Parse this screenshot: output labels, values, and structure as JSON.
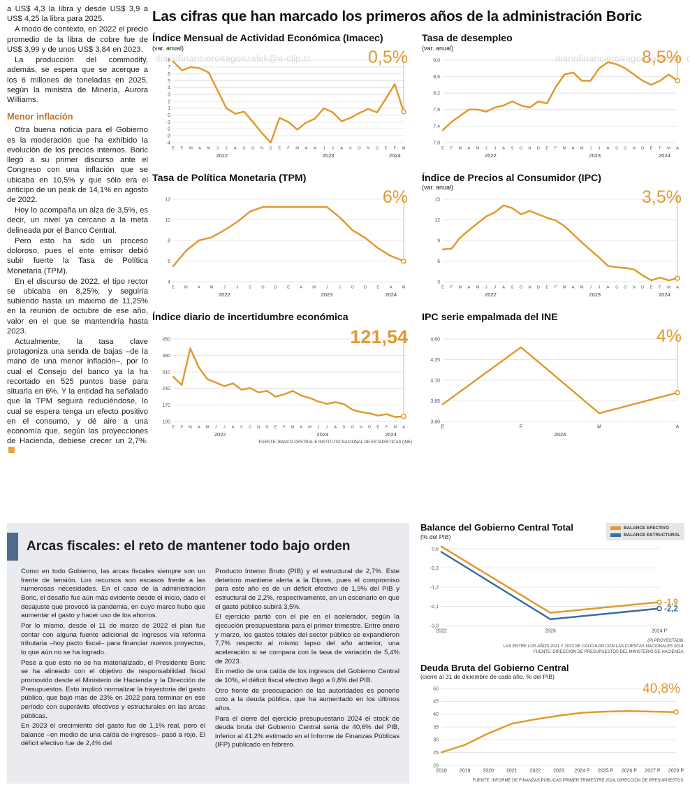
{
  "watermark": "diariofinanciero#agonzalek@e-clip.cl",
  "colors": {
    "accent_orange": "#E2992F",
    "accent_blue": "#3A6D9E"
  },
  "main_title": "Las cifras que han marcado los primeros años de la administración Boric",
  "left_column": {
    "paragraphs": [
      "a US$ 4,3 la libra y desde US$ 3,9 a US$ 4,25 la libra para 2025.",
      "A modo de contexto, en 2022 el precio promedio de la libra de cobre fue de US$ 3,99 y de unos US$ 3,84 en 2023.",
      "La producción del commodity, además, se espera que se acerque a los 6 millones de toneladas en 2025, según la ministra de Minería, Aurora Williams."
    ],
    "heading": "Menor inflación",
    "paragraphs2": [
      "Otra buena noticia para el Gobierno es la moderación que ha exhibido la evolución de los precios internos. Boric llegó a su primer discurso ante el Congreso con una inflación que se ubicaba en 10,5% y que sólo era el anticipo de un peak de 14,1% en agosto de 2022.",
      "Hoy lo acompaña un alza de 3,5%, es decir, un nivel ya cercano a la meta delineada por el Banco Central.",
      "Pero esto ha sido un proceso doloroso, pues el ente emisor debió subir fuerte la Tasa de Política Monetaria (TPM).",
      "En el discurso de 2022, el tipo rector se ubicaba en 8,25%, y seguiría subiendo hasta un máximo de 11,25% en la reunión de octubre de ese año, valor en el que se mantendría hasta 2023.",
      "Actualmente, la tasa clave protagoniza una senda de bajas –de la mano de una menor inflación–, por lo cual el Consejo del banco ya la ha recortado en 525 puntos base para situarla en 6%. Y la entidad ha señalado que la TPM seguirá reduciéndose, lo cual se espera tenga un efecto positivo en el consumo, y dé aire a una economía que, según las proyecciones de Hacienda, debiese crecer un 2,7%."
    ]
  },
  "arcas": {
    "title": "Arcas fiscales: el reto de mantener todo bajo orden",
    "col1": [
      "Como en todo Gobierno, las arcas fiscales siempre son un frente de tensión. Los recursos son escasos frente a las numerosas necesidades. En el caso de la administración Boric, el desafío fue aún más evidente desde el inicio, dado el desajuste que provocó la pandemia, en cuyo marco hubo que aumentar el gasto y hacer uso de los ahorros.",
      "Por lo mismo, desde el 11 de marzo de 2022 el plan fue contar con alguna fuente adicional de ingresos vía reforma tributaria –hoy pacto fiscal– para financiar nuevos proyectos, lo que aún no se ha logrado.",
      "Pese a que esto no se ha materializado, el Presidente Boric se ha alineado con el objetivo de responsabilidad fiscal promovido desde el Ministerio de Hacienda y la Dirección de Presupuestos. Esto implicó normalizar la trayectoria del gasto público, que bajó más de 23% en 2022 para terminar en ese período con superávits efectivos y estructurales en las arcas públicas.",
      "En 2023 el crecimiento del gasto fue de 1,1% real, pero el balance –en medio de una caída de ingresos– pasó a rojo. El déficit efectivo fue de 2,4% del"
    ],
    "col2": [
      "Producto Interno Bruto (PIB) y el estructural de 2,7%. Este deterioro mantiene alerta a la Dipres, pues el compromiso para este año es de un déficit efectivo de 1,9% del PIB y estructural de 2,2%, respectivamente, en un escenario en que el gasto público subirá 3,5%.",
      "El ejercicio partió con el pie en el acelerador, según la ejecución presupuestaria para el primer trimestre. Entre enero y marzo, los gastos totales del sector público se expandieron 7,7% respecto al mismo lapso del año anterior, una aceleración si se compara con la tasa de variación de 5,4% de 2023.",
      "En medio de una caída de los ingresos del Gobierno Central de 10%, el déficit fiscal efectivo llegó a 0,8% del PIB.",
      "Otro frente de preocupación de las autoridades es ponerle coto a la deuda pública, que ha aumentado en los últimos años.",
      "Para el cierre del ejercicio presupuestario 2024 el stock de deuda bruta del Gobierno Central sería de 40,6% del PIB, inferior al 41,2% estimado en el Informe de Finanzas Públicas (IFP) publicado en febrero."
    ]
  },
  "chart_data": [
    {
      "id": "imacec",
      "type": "line",
      "title": "Índice Mensual de Actividad Económica (Imacec)",
      "subtitle": "(var. anual)",
      "highlight": "0,5%",
      "color": "#E2992F",
      "categories": [
        "E",
        "F",
        "M",
        "A",
        "M",
        "J",
        "J",
        "A",
        "S",
        "O",
        "N",
        "D",
        "E",
        "F",
        "M",
        "A",
        "M",
        "J",
        "J",
        "A",
        "S",
        "O",
        "N",
        "D",
        "E",
        "F",
        "M"
      ],
      "values": [
        7.8,
        6.5,
        7.0,
        6.8,
        6.2,
        3.6,
        1.0,
        0.2,
        0.5,
        -1.0,
        -2.6,
        -4.0,
        -0.4,
        -1.0,
        -2.1,
        -1.1,
        -0.5,
        1.0,
        0.4,
        -0.9,
        -0.4,
        0.3,
        0.9,
        0.4,
        2.4,
        4.5,
        0.5
      ],
      "ytick_values": [
        8,
        7,
        6,
        5,
        4,
        3,
        2,
        1,
        0,
        -1,
        -2,
        -3,
        -4
      ],
      "ytick_labels": [
        "8",
        "7",
        "6",
        "5",
        "4",
        "3",
        "2",
        "1",
        "0",
        "-1",
        "-2",
        "-3",
        "-4"
      ],
      "ylim": [
        -4,
        8
      ],
      "years": [
        {
          "label": "2022",
          "from": 0,
          "to": 11
        },
        {
          "label": "2023",
          "from": 12,
          "to": 23
        },
        {
          "label": "2024",
          "from": 24,
          "to": 26
        }
      ],
      "end_guide": true
    },
    {
      "id": "desempleo",
      "type": "line",
      "title": "Tasa de desempleo",
      "subtitle": "(var. anual)",
      "highlight": "8,5%",
      "color": "#E2992F",
      "categories": [
        "E",
        "F",
        "M",
        "A",
        "M",
        "J",
        "J",
        "A",
        "S",
        "O",
        "N",
        "D",
        "E",
        "F",
        "M",
        "A",
        "M",
        "J",
        "J",
        "A",
        "S",
        "O",
        "N",
        "D",
        "E",
        "F",
        "M",
        "A"
      ],
      "values": [
        7.3,
        7.5,
        7.65,
        7.8,
        7.8,
        7.75,
        7.85,
        7.9,
        8.0,
        7.9,
        7.85,
        8.0,
        7.95,
        8.35,
        8.65,
        8.7,
        8.5,
        8.5,
        8.8,
        8.95,
        8.9,
        8.8,
        8.65,
        8.5,
        8.4,
        8.5,
        8.65,
        8.5
      ],
      "ytick_values": [
        9.0,
        8.6,
        8.2,
        7.8,
        7.4,
        7.0
      ],
      "ytick_labels": [
        "9,0",
        "8,6",
        "8,2",
        "7,8",
        "7,4",
        "7,0"
      ],
      "ylim": [
        7.0,
        9.0
      ],
      "years": [
        {
          "label": "2022",
          "from": 0,
          "to": 11
        },
        {
          "label": "2023",
          "from": 12,
          "to": 23
        },
        {
          "label": "2024",
          "from": 24,
          "to": 27
        }
      ],
      "end_guide": true
    },
    {
      "id": "tpm",
      "type": "line",
      "title": "Tasa de Política Monetaria (TPM)",
      "subtitle": "",
      "highlight": "6%",
      "color": "#E2992F",
      "categories": [
        "E",
        "M",
        "A",
        "M",
        "J",
        "J",
        "S",
        "O",
        "D",
        "E",
        "A",
        "M",
        "J",
        "J",
        "O",
        "D",
        "E",
        "A",
        "M"
      ],
      "values": [
        5.5,
        7.0,
        8.0,
        8.3,
        9.0,
        9.8,
        10.8,
        11.25,
        11.25,
        11.25,
        11.25,
        11.25,
        11.25,
        10.25,
        9.0,
        8.25,
        7.25,
        6.5,
        6.0
      ],
      "ytick_values": [
        12,
        10,
        8,
        6,
        4
      ],
      "ytick_labels": [
        "12",
        "10",
        "8",
        "6",
        "4"
      ],
      "ylim": [
        4,
        12
      ],
      "years": [
        {
          "label": "2022",
          "from": 0,
          "to": 8
        },
        {
          "label": "2023",
          "from": 9,
          "to": 15
        },
        {
          "label": "2024",
          "from": 16,
          "to": 18
        }
      ],
      "end_guide": true
    },
    {
      "id": "ipc",
      "type": "line",
      "title": "Índice de Precios al Consumidor (IPC)",
      "subtitle": "(var. anual)",
      "highlight": "3,5%",
      "color": "#E2992F",
      "categories": [
        "E",
        "F",
        "M",
        "A",
        "M",
        "J",
        "J",
        "A",
        "S",
        "O",
        "N",
        "D",
        "E",
        "F",
        "M",
        "A",
        "M",
        "J",
        "J",
        "A",
        "S",
        "O",
        "N",
        "D",
        "E",
        "F",
        "M",
        "A"
      ],
      "values": [
        7.7,
        7.8,
        9.4,
        10.5,
        11.5,
        12.5,
        13.1,
        14.1,
        13.7,
        12.8,
        13.3,
        12.8,
        12.3,
        11.9,
        11.1,
        9.9,
        8.7,
        7.6,
        6.5,
        5.3,
        5.1,
        5.0,
        4.8,
        3.9,
        3.2,
        3.6,
        3.2,
        3.5
      ],
      "ytick_values": [
        15,
        12,
        9,
        6,
        3
      ],
      "ytick_labels": [
        "15",
        "12",
        "9",
        "6",
        "3"
      ],
      "ylim": [
        3,
        15
      ],
      "years": [
        {
          "label": "2022",
          "from": 0,
          "to": 11
        },
        {
          "label": "2023",
          "from": 12,
          "to": 23
        },
        {
          "label": "2024",
          "from": 24,
          "to": 27
        }
      ],
      "end_guide": true
    },
    {
      "id": "incertidumbre",
      "type": "line",
      "title": "Índice diario de incertidumbre económica",
      "subtitle": "",
      "highlight": "121,54",
      "color": "#E2992F",
      "categories": [
        "E",
        "F",
        "M",
        "A",
        "M",
        "J",
        "J",
        "A",
        "S",
        "O",
        "N",
        "D",
        "E",
        "F",
        "M",
        "A",
        "M",
        "J",
        "J",
        "A",
        "S",
        "O",
        "N",
        "D",
        "E",
        "F",
        "M",
        "A"
      ],
      "values": [
        290,
        255,
        410,
        330,
        280,
        265,
        250,
        262,
        235,
        242,
        224,
        230,
        205,
        215,
        230,
        210,
        200,
        185,
        175,
        182,
        174,
        150,
        140,
        135,
        125,
        131,
        119,
        121.54
      ],
      "ytick_values": [
        450,
        380,
        310,
        240,
        170,
        100
      ],
      "ytick_labels": [
        "450",
        "380",
        "310",
        "240",
        "170",
        "100"
      ],
      "ylim": [
        100,
        450
      ],
      "years": [
        {
          "label": "2022",
          "from": 0,
          "to": 11
        },
        {
          "label": "2023",
          "from": 12,
          "to": 23
        },
        {
          "label": "2024",
          "from": 24,
          "to": 27
        }
      ],
      "end_guide": true,
      "source": "FUENTE: BANCO CENTRAL E INSTITUTO NACIONAL DE ESTADÍSTICAS (INE)"
    },
    {
      "id": "ipc-empalmada",
      "type": "line",
      "title": "IPC serie empalmada del INE",
      "subtitle": "",
      "highlight": "4%",
      "color": "#E2992F",
      "categories": [
        "E",
        "F",
        "M",
        "A"
      ],
      "values": [
        3.81,
        4.5,
        3.7,
        3.95
      ],
      "ytick_values": [
        4.6,
        4.35,
        4.1,
        3.85,
        3.6
      ],
      "ytick_labels": [
        "4,60",
        "4,35",
        "4,10",
        "3,85",
        "3,60"
      ],
      "ylim": [
        3.6,
        4.6
      ],
      "years": [
        {
          "label": "2024",
          "from": 0,
          "to": 3
        }
      ],
      "end_guide": true
    },
    {
      "id": "balance",
      "type": "line",
      "title": "Balance del Gobierno Central Total",
      "subtitle": "(% del PIB)",
      "categories": [
        "2022",
        "2023",
        "2024 P"
      ],
      "series": [
        {
          "name": "BALANCE EFECTIVO",
          "color": "#E2992F",
          "values": [
            0.7,
            -2.4,
            -1.9
          ],
          "end_label": "-1,9"
        },
        {
          "name": "BALANCE ESTRUCTURAL",
          "color": "#3A6D9E",
          "values": [
            0.45,
            -2.7,
            -2.2
          ],
          "end_label": "-2,2"
        }
      ],
      "ytick_values": [
        0.6,
        -0.3,
        -1.2,
        -2.1,
        -3.0
      ],
      "ytick_labels": [
        "0,6",
        "-0,3",
        "-1,2",
        "-2,1",
        "-3,0"
      ],
      "ylim": [
        -3.0,
        0.6
      ],
      "end_guide": false,
      "sources": [
        "(P) PROYECTADO.",
        "LAS ENTRE LOS AÑOS 2021 Y 2023 SE CALCULAN CON LAS CUENTAS NACIONALES 2018.",
        "FUENTE: DIRECCIÓN DE PRESUPUESTOS DEL MINISTERIO DE HACIENDA."
      ]
    },
    {
      "id": "deuda",
      "type": "line",
      "title": "Deuda Bruta del Gobierno Central",
      "subtitle": "(cierre al 31 de diciembre de cada año, % del PIB)",
      "highlight": "40,8%",
      "color": "#E2992F",
      "categories": [
        "2018",
        "2019",
        "2020",
        "2021",
        "2022",
        "2023",
        "2024 P",
        "2025 P",
        "2026 P",
        "2027 P",
        "2028 P"
      ],
      "values": [
        25.1,
        28.0,
        32.5,
        36.3,
        38.0,
        39.4,
        40.6,
        41.0,
        41.2,
        41.0,
        40.8
      ],
      "ytick_values": [
        50,
        45,
        40,
        35,
        30,
        25,
        20
      ],
      "ytick_labels": [
        "50",
        "45",
        "40",
        "35",
        "30",
        "25",
        "20"
      ],
      "ylim": [
        20,
        50
      ],
      "end_guide": false,
      "source": "FUENTE: INFORME DE FINANZAS PÚBLICAS PRIMER TRIMESTRE 2024, DIRECCIÓN DE PRESUPUESTOS."
    }
  ]
}
